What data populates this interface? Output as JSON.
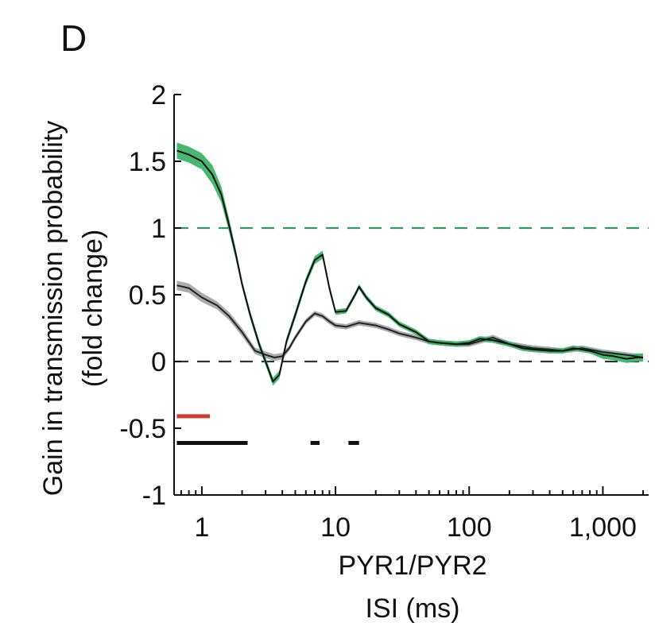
{
  "chart_data": {
    "type": "line",
    "panel_label": "D",
    "xscale": "log",
    "xlim": [
      0.62,
      2200
    ],
    "ylim": [
      -1,
      2
    ],
    "xlabel_lines": [
      "PYR1/PYR2",
      "ISI (ms)"
    ],
    "ylabel_lines": [
      "Gain in transmission probability",
      "(fold change)"
    ],
    "yticks": [
      {
        "value": 2,
        "label": "2"
      },
      {
        "value": 1.5,
        "label": "1.5"
      },
      {
        "value": 1,
        "label": "1"
      },
      {
        "value": 0.5,
        "label": "0.5"
      },
      {
        "value": 0,
        "label": "0"
      },
      {
        "value": -0.5,
        "label": "-0.5"
      },
      {
        "value": -1,
        "label": "-1"
      }
    ],
    "xticks_major": [
      {
        "value": 1,
        "label": "1"
      },
      {
        "value": 10,
        "label": "10"
      },
      {
        "value": 100,
        "label": "100"
      },
      {
        "value": 1000,
        "label": "1,000"
      }
    ],
    "reference_lines": [
      {
        "y": 1,
        "color": "#2e9a5b",
        "style": "dashed"
      },
      {
        "y": 0,
        "color": "#333333",
        "style": "dashed"
      }
    ],
    "series": [
      {
        "name": "green",
        "line_color": "#111111",
        "band_color": "#3db36a",
        "x": [
          0.65,
          0.8,
          1.0,
          1.2,
          1.4,
          1.6,
          1.8,
          2.0,
          2.3,
          2.7,
          3.0,
          3.4,
          3.8,
          4.3,
          5.0,
          6.0,
          7.0,
          8.0,
          9.0,
          10,
          12,
          14,
          15,
          17,
          20,
          25,
          30,
          40,
          50,
          60,
          80,
          100,
          120,
          150,
          200,
          250,
          300,
          400,
          500,
          600,
          800,
          1000,
          1200,
          1500,
          1800,
          2000
        ],
        "y": [
          1.58,
          1.55,
          1.5,
          1.4,
          1.25,
          1.02,
          0.8,
          0.58,
          0.35,
          0.12,
          0.0,
          -0.15,
          -0.1,
          0.15,
          0.35,
          0.6,
          0.76,
          0.8,
          0.55,
          0.37,
          0.38,
          0.5,
          0.56,
          0.48,
          0.4,
          0.35,
          0.28,
          0.22,
          0.15,
          0.14,
          0.13,
          0.14,
          0.17,
          0.16,
          0.13,
          0.1,
          0.09,
          0.08,
          0.08,
          0.1,
          0.08,
          0.05,
          0.04,
          0.02,
          0.03,
          0.03
        ],
        "band_halfwidth": [
          0.06,
          0.06,
          0.06,
          0.07,
          0.06,
          0.05,
          0.04,
          0.03,
          0.03,
          0.03,
          0.03,
          0.03,
          0.03,
          0.03,
          0.03,
          0.03,
          0.03,
          0.03,
          0.03,
          0.02,
          0.02,
          0.02,
          0.02,
          0.02,
          0.02,
          0.02,
          0.02,
          0.02,
          0.02,
          0.02,
          0.02,
          0.02,
          0.02,
          0.02,
          0.02,
          0.02,
          0.02,
          0.02,
          0.02,
          0.02,
          0.02,
          0.03,
          0.03,
          0.03,
          0.03,
          0.03
        ]
      },
      {
        "name": "gray",
        "line_color": "#222222",
        "band_color": "#a7a7ab",
        "x": [
          0.65,
          0.8,
          1.0,
          1.3,
          1.6,
          2.0,
          2.5,
          3.0,
          3.5,
          4.0,
          4.5,
          5.0,
          6.0,
          7.0,
          8.0,
          9.0,
          10,
          12,
          15,
          20,
          25,
          30,
          40,
          50,
          60,
          80,
          100,
          150,
          200,
          300,
          400,
          500,
          700,
          1000,
          1500,
          2000
        ],
        "y": [
          0.57,
          0.55,
          0.48,
          0.42,
          0.34,
          0.22,
          0.08,
          0.05,
          0.03,
          0.04,
          0.1,
          0.18,
          0.3,
          0.36,
          0.34,
          0.3,
          0.27,
          0.26,
          0.29,
          0.27,
          0.24,
          0.21,
          0.18,
          0.15,
          0.14,
          0.13,
          0.13,
          0.18,
          0.13,
          0.1,
          0.09,
          0.08,
          0.1,
          0.07,
          0.05,
          0.03
        ],
        "band_halfwidth": [
          0.035,
          0.035,
          0.035,
          0.03,
          0.03,
          0.03,
          0.025,
          0.025,
          0.025,
          0.025,
          0.02,
          0.02,
          0.02,
          0.02,
          0.02,
          0.02,
          0.02,
          0.02,
          0.02,
          0.02,
          0.02,
          0.02,
          0.02,
          0.02,
          0.02,
          0.02,
          0.02,
          0.02,
          0.02,
          0.02,
          0.02,
          0.02,
          0.02,
          0.02,
          0.02,
          0.02
        ]
      }
    ],
    "significance_bars": [
      {
        "y": -0.41,
        "color": "#d43a2a",
        "segments": [
          [
            0.65,
            1.15
          ]
        ]
      },
      {
        "y": -0.61,
        "color": "#111111",
        "segments": [
          [
            0.65,
            2.2
          ],
          [
            6.5,
            7.6
          ],
          [
            12.5,
            15
          ]
        ]
      }
    ]
  }
}
